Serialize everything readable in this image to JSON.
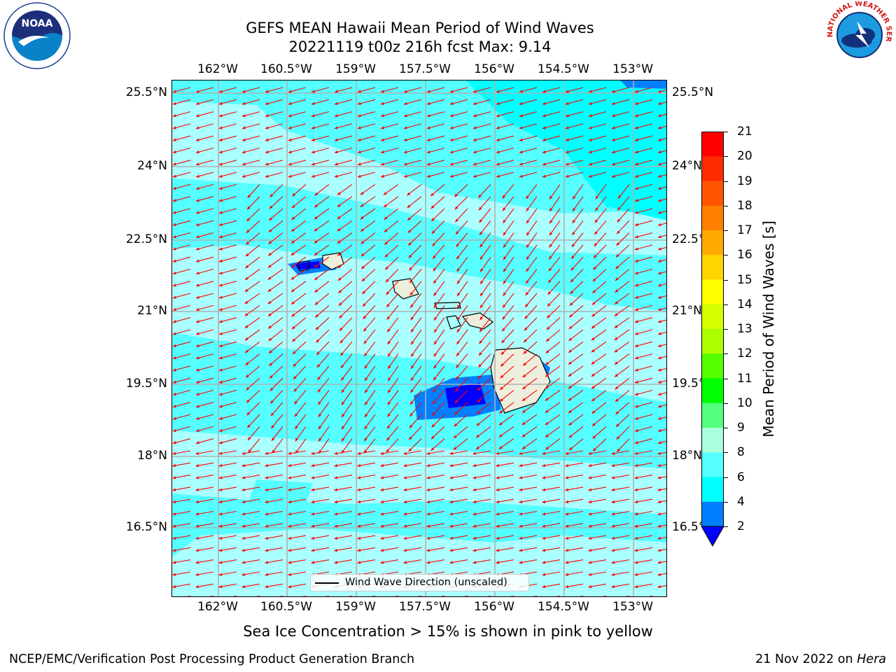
{
  "header": {
    "title_line1": "GEFS MEAN Hawaii Mean Period of Wind Waves",
    "title_line2": "20221119 t00z 216h fcst   Max: 9.14"
  },
  "axes": {
    "lon_labels": [
      "162°W",
      "160.5°W",
      "159°W",
      "157.5°W",
      "156°W",
      "154.5°W",
      "153°W"
    ],
    "lat_labels": [
      "25.5°N",
      "24°N",
      "22.5°N",
      "21°N",
      "19.5°N",
      "18°N",
      "16.5°N"
    ],
    "lon_range": [
      -163.0,
      -152.25
    ],
    "lat_range": [
      15.0,
      25.7
    ],
    "grid": true
  },
  "colorbar": {
    "title": "Mean Period of Wind Waves [s]",
    "ticks": [
      "21",
      "20",
      "19",
      "18",
      "17",
      "16",
      "15",
      "14",
      "13",
      "12",
      "11",
      "10",
      "9",
      "8",
      "6",
      "4",
      "2"
    ],
    "colors_top_to_bottom": [
      "#ff0000",
      "#ff2a00",
      "#ff5500",
      "#ff7f00",
      "#ffaa00",
      "#ffd400",
      "#ffff00",
      "#d4ff00",
      "#aaff00",
      "#55ff00",
      "#00ff00",
      "#55ff7f",
      "#aaffdd",
      "#55ffff",
      "#00ffff",
      "#0080ff",
      "#0000ff"
    ],
    "extend_min_color": "#0000ff"
  },
  "legend": {
    "label": "Wind Wave Direction (unscaled)"
  },
  "chart_data": {
    "type": "heatmap",
    "title": "GEFS MEAN Hawaii Mean Period of Wind Waves",
    "subtitle": "20221119 t00z 216h fcst   Max: 9.14",
    "max_value": 9.14,
    "units": "s",
    "dominant_period_range": [
      6,
      9
    ],
    "wind_wave_direction": "from east-northeast"
  },
  "notes": {
    "sea_ice": "Sea Ice Concentration > 15% is shown in pink to yellow"
  },
  "footer": {
    "left": "NCEP/EMC/Verification Post Processing Product Generation Branch",
    "date": "21 Nov 2022 on ",
    "machine": "Hera"
  },
  "logos": {
    "noaa_text": "NOAA",
    "nws_text": "NATIONAL WEATHER SERVICE"
  }
}
